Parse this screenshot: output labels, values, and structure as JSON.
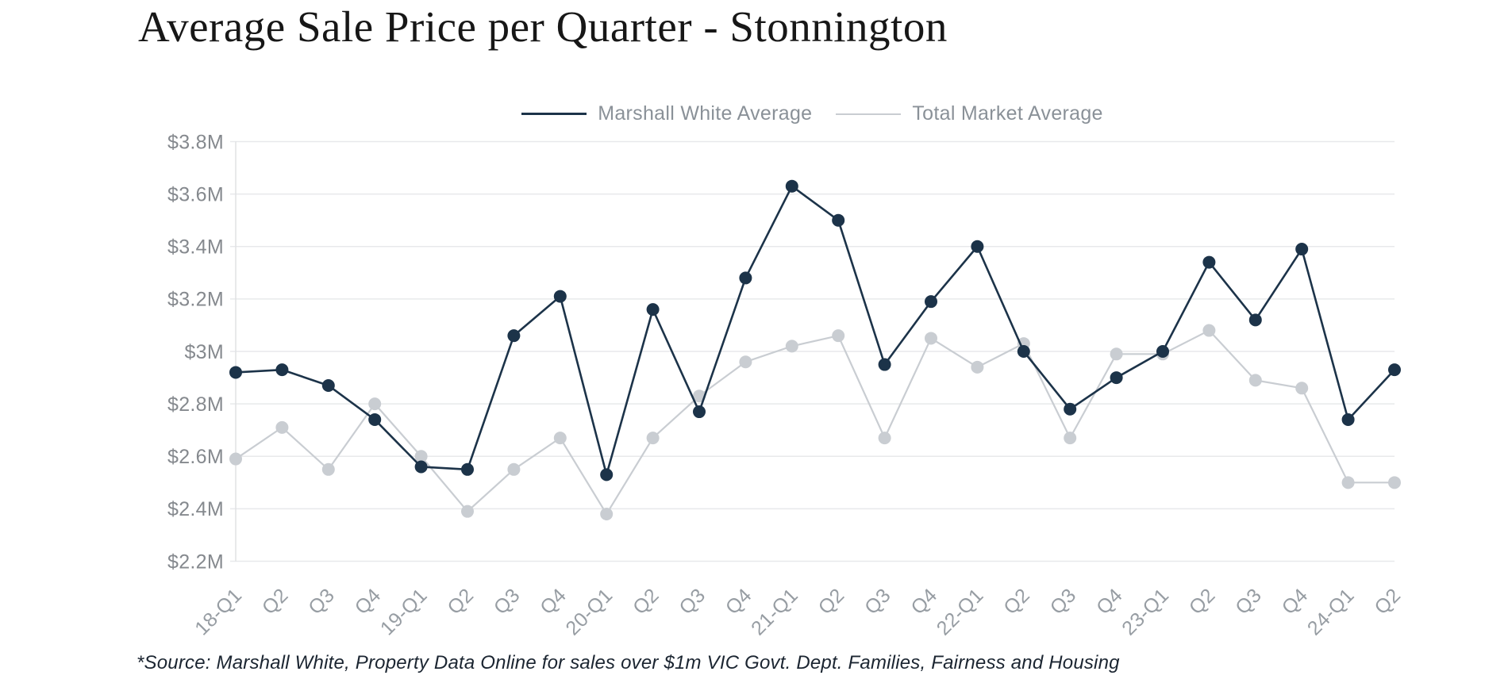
{
  "page": {
    "title": "Average Sale Price per Quarter - Stonnington",
    "source_note": "*Source: Marshall White, Property Data Online for sales over $1m VIC Govt. Dept. Families, Fairness and Housing"
  },
  "legend": {
    "items": [
      {
        "label": "Marshall White Average",
        "color": "#1c3349"
      },
      {
        "label": "Total Market Average",
        "color": "#c9cdd2"
      }
    ]
  },
  "colors": {
    "marshall_white": "#1c3349",
    "total_market": "#c9cdd2",
    "gridline": "#e8e9eb",
    "axis_line": "#e0e2e4",
    "y_tick_label": "#85898e",
    "x_tick_label": "#979da3",
    "legend_text": "#8a9198",
    "title_text": "#171717",
    "source_text": "#1b2531"
  },
  "chart_data": {
    "type": "line",
    "title": "Average Sale Price per Quarter - Stonnington",
    "grid": "horizontal",
    "legend_position": "top-center",
    "xlabel": "",
    "ylabel": "",
    "ylim": [
      2.2,
      3.8
    ],
    "y_ticks": [
      {
        "label": "$3.8M",
        "value": 3.8
      },
      {
        "label": "$3.6M",
        "value": 3.6
      },
      {
        "label": "$3.4M",
        "value": 3.4
      },
      {
        "label": "$3.2M",
        "value": 3.2
      },
      {
        "label": "$3M",
        "value": 3.0
      },
      {
        "label": "$2.8M",
        "value": 2.8
      },
      {
        "label": "$2.6M",
        "value": 2.6
      },
      {
        "label": "$2.4M",
        "value": 2.4
      },
      {
        "label": "$2.2M",
        "value": 2.2
      }
    ],
    "categories": [
      "18-Q1",
      "Q2",
      "Q3",
      "Q4",
      "19-Q1",
      "Q2",
      "Q3",
      "Q4",
      "20-Q1",
      "Q2",
      "Q3",
      "Q4",
      "21-Q1",
      "Q2",
      "Q3",
      "Q4",
      "22-Q1",
      "Q2",
      "Q3",
      "Q4",
      "23-Q1",
      "Q2",
      "Q3",
      "Q4",
      "24-Q1",
      "Q2"
    ],
    "series": [
      {
        "name": "Marshall White Average",
        "color": "#1c3349",
        "values": [
          2.92,
          2.93,
          2.87,
          2.74,
          2.56,
          2.55,
          3.06,
          3.21,
          2.53,
          3.16,
          2.77,
          3.28,
          3.63,
          3.5,
          2.95,
          3.19,
          3.4,
          3.0,
          2.78,
          2.9,
          3.0,
          3.34,
          3.12,
          3.39,
          2.74,
          2.93
        ]
      },
      {
        "name": "Total Market Average",
        "color": "#c9cdd2",
        "values": [
          2.59,
          2.71,
          2.55,
          2.8,
          2.6,
          2.39,
          2.55,
          2.67,
          2.38,
          2.67,
          2.83,
          2.96,
          3.02,
          3.06,
          2.67,
          3.05,
          2.94,
          3.03,
          2.67,
          2.99,
          2.99,
          3.08,
          2.89,
          2.86,
          2.5,
          2.5
        ]
      }
    ]
  }
}
